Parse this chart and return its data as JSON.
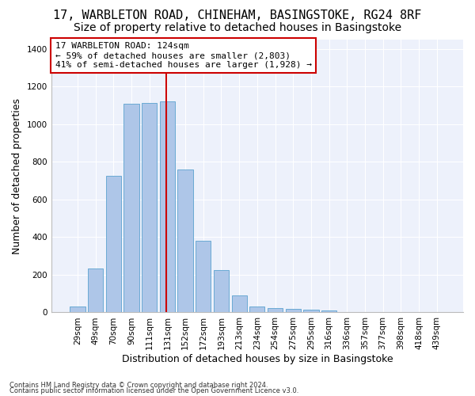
{
  "title": "17, WARBLETON ROAD, CHINEHAM, BASINGSTOKE, RG24 8RF",
  "subtitle": "Size of property relative to detached houses in Basingstoke",
  "xlabel": "Distribution of detached houses by size in Basingstoke",
  "ylabel": "Number of detached properties",
  "categories": [
    "29sqm",
    "49sqm",
    "70sqm",
    "90sqm",
    "111sqm",
    "131sqm",
    "152sqm",
    "172sqm",
    "193sqm",
    "213sqm",
    "234sqm",
    "254sqm",
    "275sqm",
    "295sqm",
    "316sqm",
    "336sqm",
    "357sqm",
    "377sqm",
    "398sqm",
    "418sqm",
    "439sqm"
  ],
  "values": [
    30,
    235,
    725,
    1110,
    1115,
    1120,
    760,
    380,
    225,
    90,
    30,
    25,
    20,
    15,
    10,
    0,
    0,
    0,
    0,
    0,
    0
  ],
  "bar_color": "#aec6e8",
  "bar_edgecolor": "#6aaad4",
  "vline_color": "#cc0000",
  "annotation_line1": "17 WARBLETON ROAD: 124sqm",
  "annotation_line2": "← 59% of detached houses are smaller (2,803)",
  "annotation_line3": "41% of semi-detached houses are larger (1,928) →",
  "annotation_box_color": "#ffffff",
  "annotation_edgecolor": "#cc0000",
  "ylim": [
    0,
    1450
  ],
  "yticks": [
    0,
    200,
    400,
    600,
    800,
    1000,
    1200,
    1400
  ],
  "bg_color": "#edf1fb",
  "title_fontsize": 11,
  "subtitle_fontsize": 10,
  "xlabel_fontsize": 9,
  "ylabel_fontsize": 9,
  "tick_fontsize": 7.5,
  "annot_fontsize": 8,
  "footer1": "Contains HM Land Registry data © Crown copyright and database right 2024.",
  "footer2": "Contains public sector information licensed under the Open Government Licence v3.0.",
  "footer_fontsize": 6
}
